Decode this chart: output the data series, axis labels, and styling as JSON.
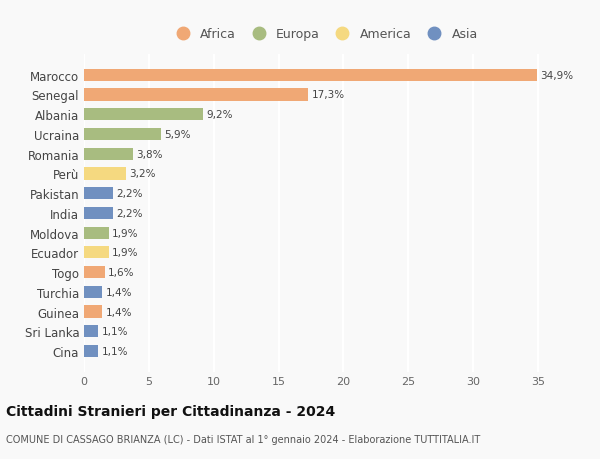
{
  "countries": [
    "Marocco",
    "Senegal",
    "Albania",
    "Ucraina",
    "Romania",
    "Perù",
    "Pakistan",
    "India",
    "Moldova",
    "Ecuador",
    "Togo",
    "Turchia",
    "Guinea",
    "Sri Lanka",
    "Cina"
  ],
  "values": [
    34.9,
    17.3,
    9.2,
    5.9,
    3.8,
    3.2,
    2.2,
    2.2,
    1.9,
    1.9,
    1.6,
    1.4,
    1.4,
    1.1,
    1.1
  ],
  "labels": [
    "34,9%",
    "17,3%",
    "9,2%",
    "5,9%",
    "3,8%",
    "3,2%",
    "2,2%",
    "2,2%",
    "1,9%",
    "1,9%",
    "1,6%",
    "1,4%",
    "1,4%",
    "1,1%",
    "1,1%"
  ],
  "continents": [
    "Africa",
    "Africa",
    "Europa",
    "Europa",
    "Europa",
    "America",
    "Asia",
    "Asia",
    "Europa",
    "America",
    "Africa",
    "Asia",
    "Africa",
    "Asia",
    "Asia"
  ],
  "colors": {
    "Africa": "#F0A875",
    "Europa": "#A8BC80",
    "America": "#F5D980",
    "Asia": "#7090C0"
  },
  "legend_order": [
    "Africa",
    "Europa",
    "America",
    "Asia"
  ],
  "xlim": [
    0,
    37
  ],
  "xticks": [
    0,
    5,
    10,
    15,
    20,
    25,
    30,
    35
  ],
  "title": "Cittadini Stranieri per Cittadinanza - 2024",
  "subtitle": "COMUNE DI CASSAGO BRIANZA (LC) - Dati ISTAT al 1° gennaio 2024 - Elaborazione TUTTITALIA.IT",
  "background_color": "#f9f9f9",
  "grid_color": "#ffffff",
  "bar_height": 0.62
}
